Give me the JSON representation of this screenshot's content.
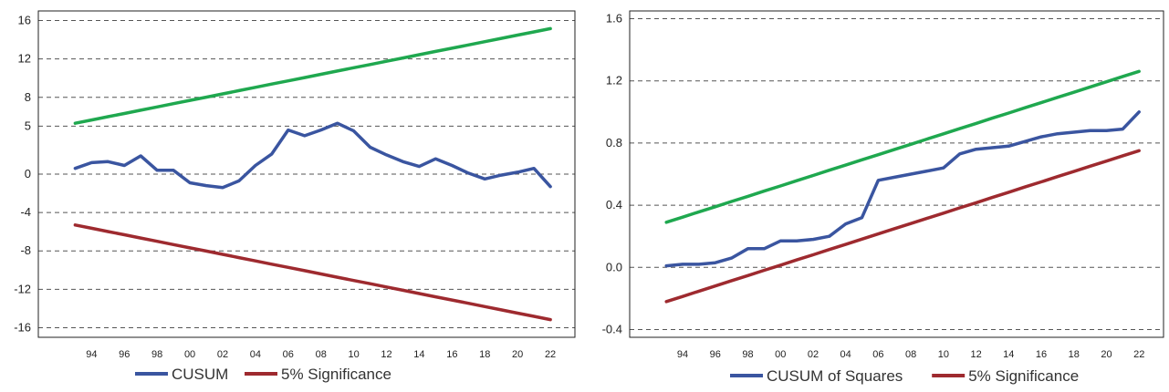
{
  "colors": {
    "cusum": "#3a55a0",
    "significance": "#9e2a2f",
    "upper_bound": "#1fa84f",
    "grid": "#555555"
  },
  "chart_data": [
    {
      "type": "line",
      "title": "",
      "xlabel": "",
      "ylabel": "",
      "x": [
        1993,
        1994,
        1995,
        1996,
        1997,
        1998,
        1999,
        2000,
        2001,
        2002,
        2003,
        2004,
        2005,
        2006,
        2007,
        2008,
        2009,
        2010,
        2011,
        2012,
        2013,
        2014,
        2015,
        2016,
        2017,
        2018,
        2019,
        2020,
        2021,
        2022
      ],
      "xlim": [
        1990.75,
        2023.5
      ],
      "ylim": [
        -17,
        17
      ],
      "yticks": [
        16,
        12,
        8,
        5,
        0,
        -4,
        -8,
        -12,
        -16
      ],
      "ytick_labels": [
        "16",
        "12",
        "8",
        "5",
        "0",
        "-4",
        "-8",
        "-12",
        "-16"
      ],
      "xticks": [
        1994,
        1996,
        1998,
        2000,
        2002,
        2004,
        2006,
        2008,
        2010,
        2012,
        2014,
        2016,
        2018,
        2020,
        2022
      ],
      "xtick_labels": [
        "94",
        "96",
        "98",
        "00",
        "02",
        "04",
        "06",
        "08",
        "10",
        "12",
        "14",
        "16",
        "18",
        "20",
        "22"
      ],
      "grid": true,
      "legend_position": "bottom",
      "series": [
        {
          "name": "CUSUM",
          "color": "#3a55a0",
          "in_legend": true,
          "values": [
            0.6,
            1.2,
            1.3,
            0.9,
            1.9,
            0.4,
            0.4,
            -0.9,
            -1.2,
            -1.4,
            -0.7,
            0.9,
            2.1,
            4.6,
            4.0,
            4.6,
            5.3,
            4.5,
            2.8,
            2.0,
            1.3,
            0.8,
            1.6,
            0.9,
            0.1,
            -0.5,
            -0.1,
            0.2,
            0.6,
            -1.3
          ]
        },
        {
          "name": "5% Significance",
          "color": "#9e2a2f",
          "in_legend": true,
          "values": [
            -5.3,
            -5.64,
            -5.98,
            -6.32,
            -6.66,
            -7.0,
            -7.34,
            -7.68,
            -8.02,
            -8.36,
            -8.7,
            -9.04,
            -9.38,
            -9.72,
            -10.06,
            -10.4,
            -10.74,
            -11.08,
            -11.42,
            -11.76,
            -12.1,
            -12.44,
            -12.78,
            -13.12,
            -13.46,
            -13.8,
            -14.14,
            -14.48,
            -14.82,
            -15.16
          ]
        },
        {
          "name": "",
          "color": "#1fa84f",
          "in_legend": false,
          "values": [
            5.3,
            5.64,
            5.98,
            6.32,
            6.66,
            7.0,
            7.34,
            7.68,
            8.02,
            8.36,
            8.7,
            9.04,
            9.38,
            9.72,
            10.06,
            10.4,
            10.74,
            11.08,
            11.42,
            11.76,
            12.1,
            12.44,
            12.78,
            13.12,
            13.46,
            13.8,
            14.14,
            14.48,
            14.82,
            15.16
          ]
        }
      ]
    },
    {
      "type": "line",
      "title": "",
      "xlabel": "",
      "ylabel": "",
      "x": [
        1993,
        1994,
        1995,
        1996,
        1997,
        1998,
        1999,
        2000,
        2001,
        2002,
        2003,
        2004,
        2005,
        2006,
        2007,
        2008,
        2009,
        2010,
        2011,
        2012,
        2013,
        2014,
        2015,
        2016,
        2017,
        2018,
        2019,
        2020,
        2021,
        2022
      ],
      "xlim": [
        1990.75,
        2023.5
      ],
      "ylim": [
        -0.45,
        1.65
      ],
      "yticks": [
        1.6,
        1.2,
        0.8,
        0.4,
        0.0,
        -0.4
      ],
      "ytick_labels": [
        "1.6",
        "1.2",
        "0.8",
        "0.4",
        "0.0",
        "-0.4"
      ],
      "xticks": [
        1994,
        1996,
        1998,
        2000,
        2002,
        2004,
        2006,
        2008,
        2010,
        2012,
        2014,
        2016,
        2018,
        2020,
        2022
      ],
      "xtick_labels": [
        "94",
        "96",
        "98",
        "00",
        "02",
        "04",
        "06",
        "08",
        "10",
        "12",
        "14",
        "16",
        "18",
        "20",
        "22"
      ],
      "grid": true,
      "legend_position": "bottom",
      "series": [
        {
          "name": "CUSUM of Squares",
          "color": "#3a55a0",
          "in_legend": true,
          "values": [
            0.01,
            0.02,
            0.02,
            0.03,
            0.06,
            0.12,
            0.12,
            0.17,
            0.17,
            0.18,
            0.2,
            0.28,
            0.32,
            0.56,
            0.58,
            0.6,
            0.62,
            0.64,
            0.73,
            0.76,
            0.77,
            0.78,
            0.81,
            0.84,
            0.86,
            0.87,
            0.88,
            0.88,
            0.89,
            1.0
          ]
        },
        {
          "name": "5% Significance",
          "color": "#9e2a2f",
          "in_legend": true,
          "values": [
            -0.22,
            -0.187,
            -0.153,
            -0.12,
            -0.086,
            -0.053,
            -0.019,
            0.014,
            0.048,
            0.081,
            0.115,
            0.148,
            0.182,
            0.215,
            0.249,
            0.282,
            0.316,
            0.349,
            0.383,
            0.416,
            0.45,
            0.483,
            0.517,
            0.55,
            0.584,
            0.617,
            0.651,
            0.684,
            0.718,
            0.751
          ]
        },
        {
          "name": "",
          "color": "#1fa84f",
          "in_legend": false,
          "values": [
            0.29,
            0.323,
            0.357,
            0.39,
            0.424,
            0.457,
            0.491,
            0.524,
            0.558,
            0.591,
            0.625,
            0.658,
            0.692,
            0.725,
            0.759,
            0.792,
            0.826,
            0.859,
            0.893,
            0.926,
            0.96,
            0.993,
            1.027,
            1.06,
            1.094,
            1.127,
            1.161,
            1.194,
            1.228,
            1.261
          ]
        }
      ]
    }
  ]
}
